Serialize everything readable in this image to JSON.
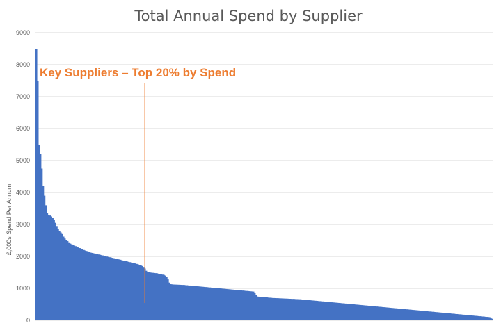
{
  "chart_data": {
    "type": "bar",
    "title": "Total Annual Spend by Supplier",
    "xlabel": "",
    "ylabel": "£,000s Spend Per Annum",
    "ylim": [
      0,
      9000
    ],
    "yticks": [
      0,
      1000,
      2000,
      3000,
      4000,
      5000,
      6000,
      7000,
      8000,
      9000
    ],
    "grid": true,
    "legend": "none",
    "bar_color": "#4472C4",
    "annotation_color": "#ED7D31",
    "annotation": {
      "text": "Key Suppliers – Top 20% by Spend",
      "marker_category_index": 80
    },
    "series": [
      {
        "values": [
          8500,
          7500,
          5500,
          5200,
          4750,
          4200,
          3900,
          3600,
          3350,
          3300,
          3280,
          3250,
          3200,
          3150,
          3050,
          2950,
          2850,
          2800,
          2750,
          2700,
          2620,
          2560,
          2520,
          2480,
          2440,
          2400,
          2380,
          2360,
          2340,
          2320,
          2300,
          2280,
          2260,
          2240,
          2220,
          2200,
          2185,
          2170,
          2155,
          2140,
          2120,
          2110,
          2100,
          2090,
          2080,
          2070,
          2060,
          2050,
          2040,
          2030,
          2020,
          2005,
          1995,
          1985,
          1975,
          1965,
          1955,
          1945,
          1935,
          1925,
          1915,
          1905,
          1895,
          1880,
          1870,
          1860,
          1850,
          1840,
          1830,
          1820,
          1810,
          1800,
          1790,
          1780,
          1765,
          1750,
          1735,
          1720,
          1700,
          1670,
          1620,
          1550,
          1510,
          1500,
          1495,
          1490,
          1485,
          1480,
          1475,
          1470,
          1460,
          1450,
          1440,
          1430,
          1420,
          1400,
          1350,
          1280,
          1180,
          1130,
          1125,
          1120,
          1118,
          1116,
          1114,
          1112,
          1110,
          1108,
          1106,
          1104,
          1100,
          1096,
          1092,
          1088,
          1084,
          1080,
          1076,
          1072,
          1068,
          1064,
          1060,
          1056,
          1052,
          1048,
          1044,
          1040,
          1036,
          1032,
          1028,
          1024,
          1020,
          1016,
          1012,
          1008,
          1004,
          1000,
          996,
          992,
          988,
          984,
          980,
          976,
          972,
          968,
          964,
          960,
          956,
          952,
          948,
          944,
          940,
          936,
          932,
          928,
          924,
          920,
          916,
          912,
          908,
          904,
          900,
          860,
          790,
          745,
          740,
          736,
          732,
          728,
          724,
          720,
          716,
          712,
          708,
          704,
          700,
          698,
          696,
          694,
          692,
          690,
          688,
          686,
          684,
          682,
          680,
          678,
          676,
          674,
          672,
          670,
          668,
          666,
          664,
          662,
          660,
          656,
          652,
          648,
          644,
          640,
          636,
          632,
          628,
          624,
          620,
          616,
          612,
          608,
          604,
          600,
          596,
          592,
          588,
          584,
          580,
          576,
          572,
          568,
          564,
          560,
          556,
          552,
          548,
          544,
          540,
          536,
          532,
          528,
          524,
          520,
          516,
          512,
          508,
          504,
          500,
          496,
          492,
          488,
          484,
          480,
          476,
          472,
          468,
          464,
          460,
          456,
          452,
          448,
          444,
          440,
          436,
          432,
          428,
          424,
          420,
          416,
          412,
          408,
          404,
          400,
          396,
          392,
          388,
          384,
          380,
          376,
          372,
          368,
          364,
          360,
          356,
          352,
          348,
          344,
          340,
          336,
          332,
          328,
          324,
          320,
          316,
          312,
          308,
          304,
          300,
          296,
          292,
          288,
          284,
          280,
          276,
          272,
          268,
          264,
          260,
          256,
          252,
          248,
          244,
          240,
          236,
          232,
          228,
          224,
          220,
          216,
          212,
          208,
          204,
          200,
          196,
          192,
          188,
          184,
          180,
          176,
          172,
          168,
          164,
          160,
          156,
          152,
          148,
          144,
          140,
          136,
          132,
          128,
          124,
          120,
          116,
          112,
          108,
          104,
          100,
          80,
          50
        ]
      }
    ]
  }
}
